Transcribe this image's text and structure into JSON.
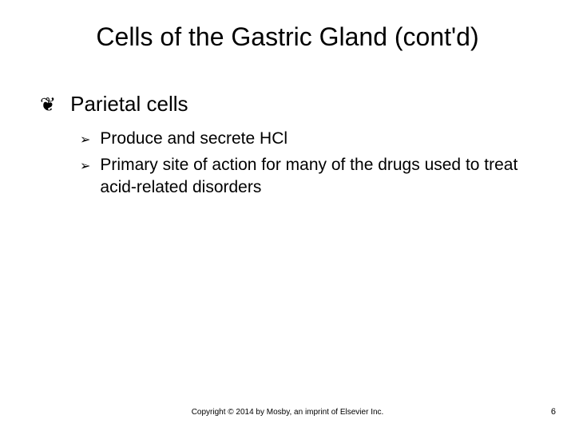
{
  "slide": {
    "title": "Cells of the Gastric Gland (cont'd)",
    "title_fontsize": 32,
    "background_color": "#ffffff",
    "text_color": "#000000",
    "level1": {
      "bullet_glyph": "❦",
      "fontsize": 26,
      "items": [
        {
          "text": "Parietal cells"
        }
      ]
    },
    "level2": {
      "bullet_glyph": "➢",
      "fontsize": 21,
      "items": [
        {
          "text": "Produce and secrete HCl"
        },
        {
          "text": "Primary site of action for many of the drugs used to treat acid-related disorders"
        }
      ]
    },
    "footer": {
      "copyright": "Copyright © 2014 by Mosby, an imprint of Elsevier Inc.",
      "page_number": "6",
      "fontsize": 10
    }
  }
}
